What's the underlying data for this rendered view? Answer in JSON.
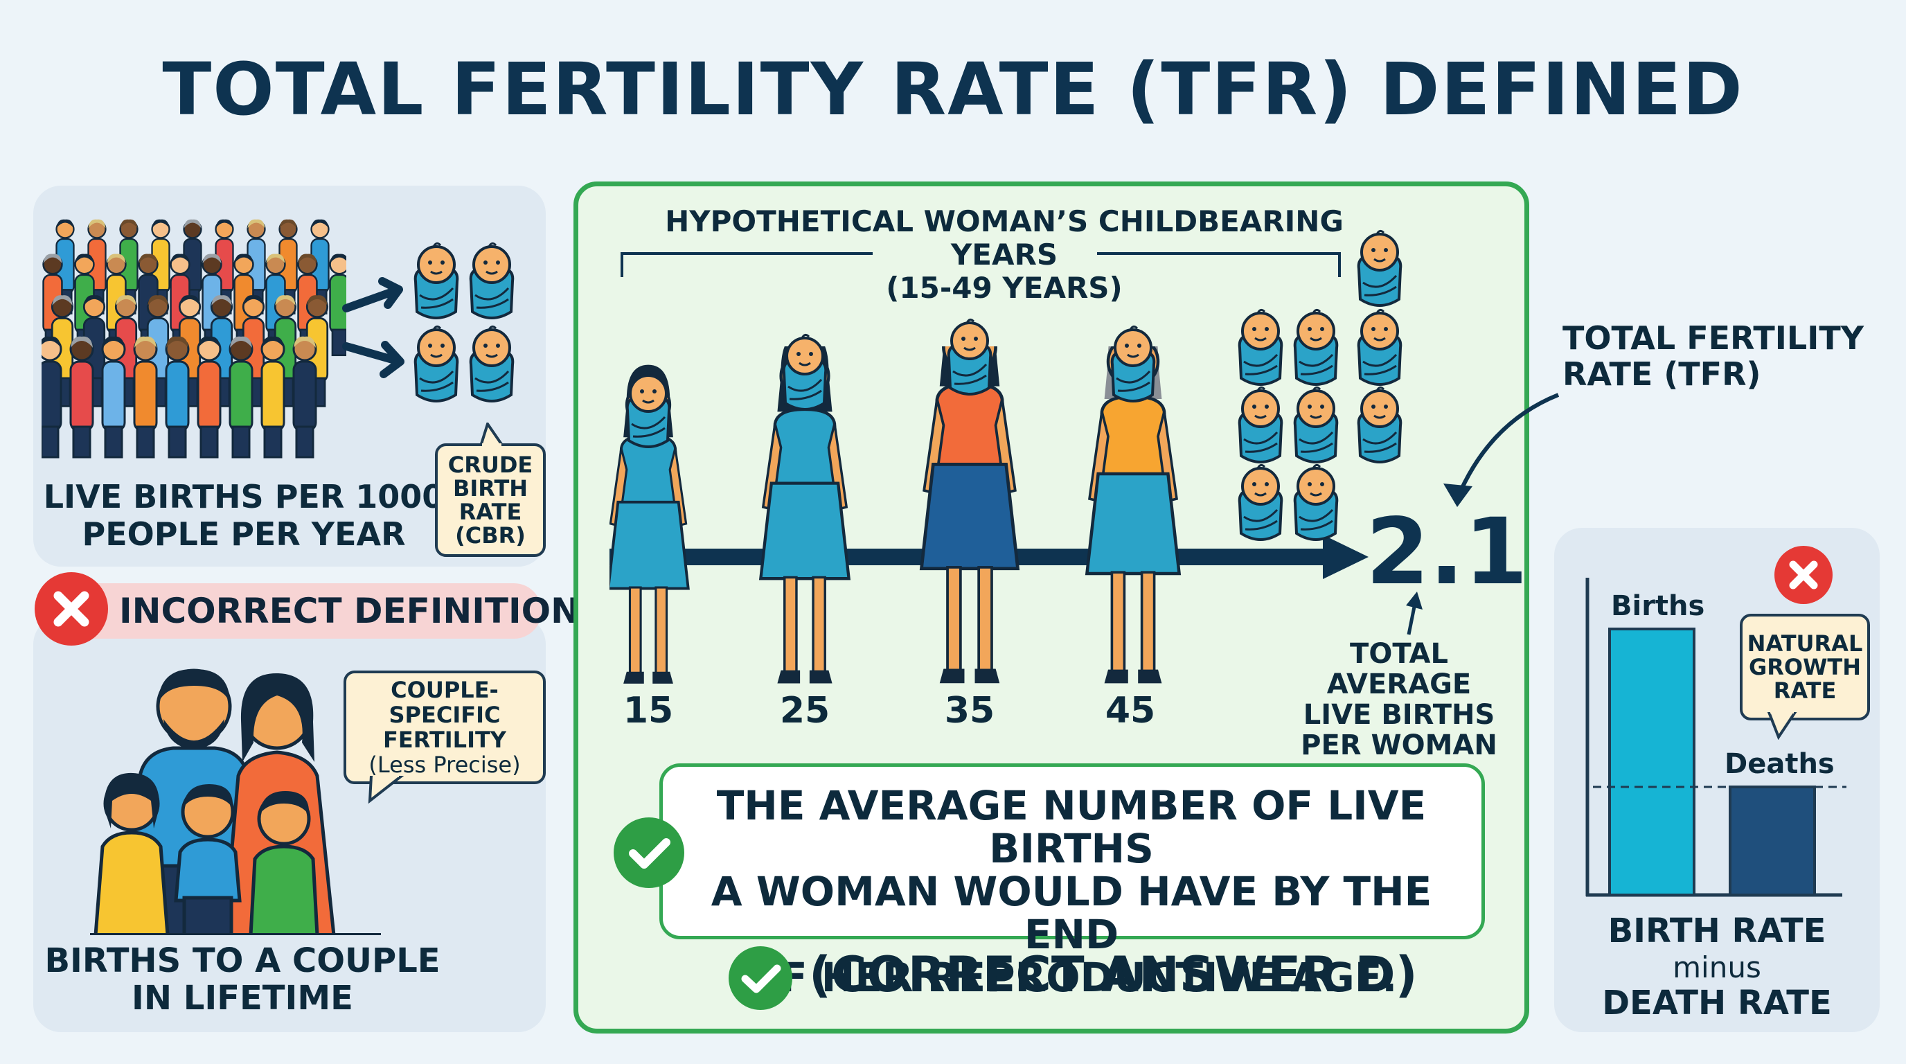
{
  "title": "TOTAL FERTILITY RATE (TFR) DEFINED",
  "incorrect": {
    "banner": "INCORRECT DEFINITIONS",
    "cbr": {
      "caption_line1": "LIVE BIRTHS PER 1000",
      "caption_line2": "PEOPLE PER YEAR",
      "callout": [
        "CRUDE",
        "BIRTH",
        "RATE",
        "(CBR)"
      ]
    },
    "couple": {
      "caption_line1": "BIRTHS TO A COUPLE",
      "caption_line2": "IN LIFETIME",
      "callout": [
        "COUPLE-SPECIFIC",
        "FERTILITY",
        "(Less Precise)"
      ]
    },
    "natural": {
      "births_label": "Births",
      "deaths_label": "Deaths",
      "callout": [
        "NATURAL",
        "GROWTH",
        "RATE"
      ],
      "caption_line1": "BIRTH RATE",
      "caption_line2": "minus",
      "caption_line3": "DEATH RATE"
    }
  },
  "main": {
    "years_title_line1": "HYPOTHETICAL WOMAN’S CHILDBEARING YEARS",
    "years_title_line2": "(15-49 YEARS)",
    "ages": [
      "15",
      "25",
      "35",
      "45"
    ],
    "tfr_value": "2.1",
    "tfr_label_line1": "TOTAL FERTILITY",
    "tfr_label_line2": "RATE (TFR)",
    "avg_caption": [
      "TOTAL AVERAGE",
      "LIVE BIRTHS",
      "PER WOMAN"
    ],
    "definition": [
      "THE AVERAGE NUMBER OF LIVE BIRTHS",
      "A WOMAN WOULD HAVE BY THE END",
      "OF HER REPRODUCTIVE AGE."
    ],
    "correct_answer": "(CORRECT ANSWER D)"
  },
  "colors": {
    "navy": "#0e3350",
    "green": "#34a853",
    "red": "#e53935",
    "baby_blue": "#2ba3c8",
    "cream": "#fdf1d4"
  }
}
